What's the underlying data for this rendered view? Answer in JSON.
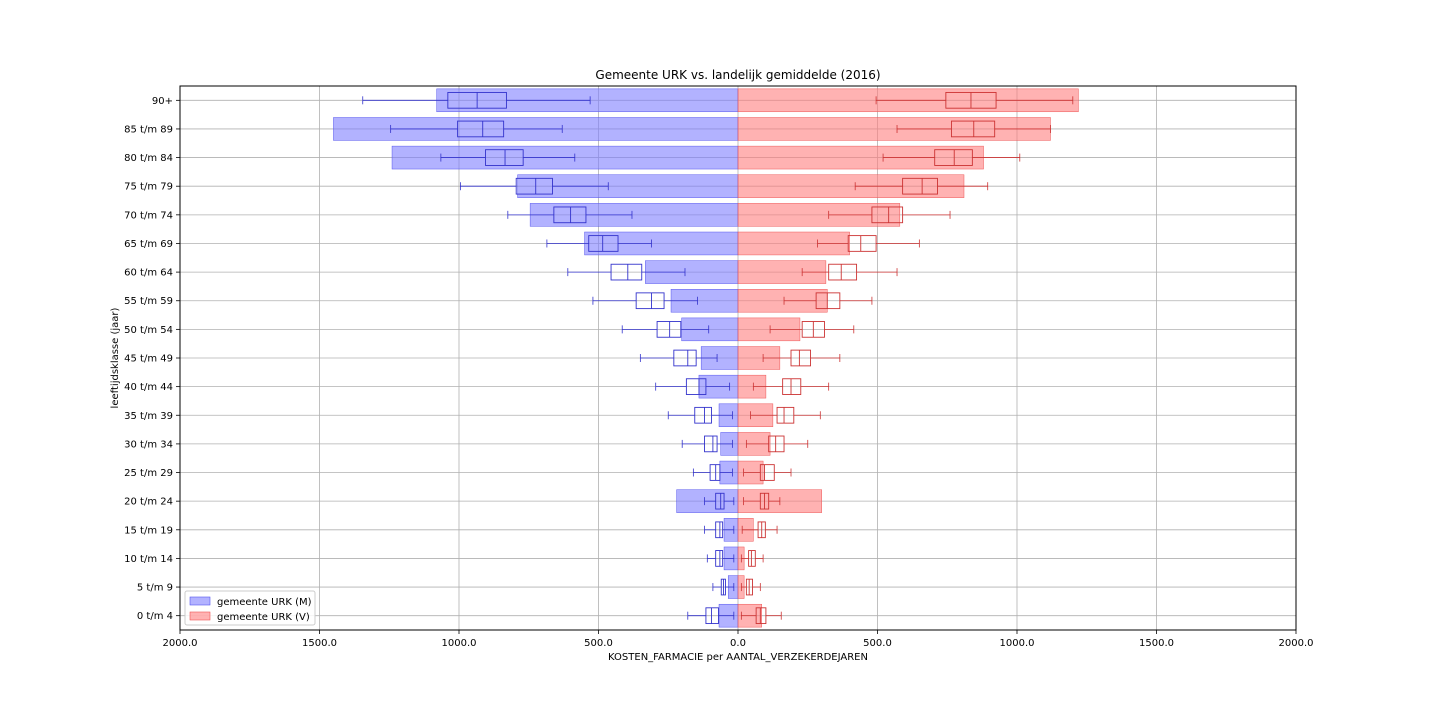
{
  "chart_data": {
    "type": "bar",
    "orientation": "horizontal-population-pyramid",
    "title": "Gemeente URK vs. landelijk gemiddelde (2016)",
    "xlabel": "KOSTEN_FARMACIE per AANTAL_VERZEKERDEJAREN",
    "ylabel": "leeftijdsklasse (jaar)",
    "xlim": [
      -2000,
      2000
    ],
    "xticks": [
      -2000,
      -1500,
      -1000,
      -500,
      0,
      500,
      1000,
      1500,
      2000
    ],
    "xtick_labels": [
      "2000.0",
      "1500.0",
      "1000.0",
      "500.0",
      "0.0",
      "500.0",
      "1000.0",
      "1500.0",
      "2000.0"
    ],
    "grid": true,
    "legend_placement": "lower-left",
    "categories": [
      "0 t/m  4",
      "5 t/m  9",
      "10 t/m 14",
      "15 t/m 19",
      "20 t/m 24",
      "25 t/m 29",
      "30 t/m 34",
      "35 t/m 39",
      "40 t/m 44",
      "45 t/m 49",
      "50 t/m 54",
      "55 t/m 59",
      "60 t/m 64",
      "65 t/m 69",
      "70 t/m 74",
      "75 t/m 79",
      "80 t/m 84",
      "85 t/m 89",
      "90+"
    ],
    "series": [
      {
        "name": "gemeente URK (M)",
        "side": "left",
        "color": "#7f7fff",
        "edge": "#5555ee",
        "box_color": "#3333cc",
        "values": [
          68,
          35,
          50,
          50,
          220,
          65,
          62,
          68,
          140,
          132,
          202,
          240,
          332,
          550,
          745,
          790,
          1240,
          1450,
          1080
        ],
        "boxes": [
          {
            "wlo": 15,
            "q1": 70,
            "med": 95,
            "q3": 115,
            "whi": 180
          },
          {
            "wlo": 15,
            "q1": 45,
            "med": 52,
            "q3": 60,
            "whi": 90
          },
          {
            "wlo": 15,
            "q1": 55,
            "med": 65,
            "q3": 80,
            "whi": 110
          },
          {
            "wlo": 15,
            "q1": 55,
            "med": 65,
            "q3": 80,
            "whi": 120
          },
          {
            "wlo": 15,
            "q1": 50,
            "med": 62,
            "q3": 80,
            "whi": 120
          },
          {
            "wlo": 20,
            "q1": 65,
            "med": 80,
            "q3": 100,
            "whi": 160
          },
          {
            "wlo": 20,
            "q1": 75,
            "med": 90,
            "q3": 120,
            "whi": 200
          },
          {
            "wlo": 20,
            "q1": 95,
            "med": 120,
            "q3": 155,
            "whi": 250
          },
          {
            "wlo": 30,
            "q1": 115,
            "med": 140,
            "q3": 185,
            "whi": 295
          },
          {
            "wlo": 75,
            "q1": 150,
            "med": 180,
            "q3": 230,
            "whi": 350
          },
          {
            "wlo": 105,
            "q1": 205,
            "med": 245,
            "q3": 290,
            "whi": 415
          },
          {
            "wlo": 145,
            "q1": 265,
            "med": 310,
            "q3": 365,
            "whi": 520
          },
          {
            "wlo": 190,
            "q1": 345,
            "med": 395,
            "q3": 455,
            "whi": 610
          },
          {
            "wlo": 310,
            "q1": 430,
            "med": 485,
            "q3": 535,
            "whi": 685
          },
          {
            "wlo": 380,
            "q1": 545,
            "med": 600,
            "q3": 660,
            "whi": 825
          },
          {
            "wlo": 465,
            "q1": 665,
            "med": 725,
            "q3": 795,
            "whi": 995
          },
          {
            "wlo": 585,
            "q1": 770,
            "med": 835,
            "q3": 905,
            "whi": 1065
          },
          {
            "wlo": 630,
            "q1": 840,
            "med": 915,
            "q3": 1005,
            "whi": 1245
          },
          {
            "wlo": 530,
            "q1": 830,
            "med": 935,
            "q3": 1040,
            "whi": 1345
          }
        ]
      },
      {
        "name": "gemeente URK (V)",
        "side": "right",
        "color": "#ff7f7f",
        "edge": "#ee5555",
        "box_color": "#cc3333",
        "values": [
          85,
          22,
          22,
          55,
          300,
          90,
          115,
          125,
          100,
          150,
          222,
          320,
          315,
          400,
          580,
          810,
          880,
          1120,
          1220
        ],
        "boxes": [
          {
            "wlo": 12,
            "q1": 65,
            "med": 80,
            "q3": 100,
            "whi": 155
          },
          {
            "wlo": 12,
            "q1": 30,
            "med": 40,
            "q3": 52,
            "whi": 80
          },
          {
            "wlo": 12,
            "q1": 38,
            "med": 48,
            "q3": 62,
            "whi": 90
          },
          {
            "wlo": 15,
            "q1": 72,
            "med": 85,
            "q3": 98,
            "whi": 140
          },
          {
            "wlo": 20,
            "q1": 80,
            "med": 95,
            "q3": 110,
            "whi": 150
          },
          {
            "wlo": 20,
            "q1": 80,
            "med": 95,
            "q3": 130,
            "whi": 190
          },
          {
            "wlo": 30,
            "q1": 110,
            "med": 135,
            "q3": 165,
            "whi": 250
          },
          {
            "wlo": 45,
            "q1": 140,
            "med": 165,
            "q3": 200,
            "whi": 295
          },
          {
            "wlo": 55,
            "q1": 160,
            "med": 190,
            "q3": 225,
            "whi": 325
          },
          {
            "wlo": 90,
            "q1": 190,
            "med": 220,
            "q3": 260,
            "whi": 365
          },
          {
            "wlo": 115,
            "q1": 230,
            "med": 270,
            "q3": 310,
            "whi": 415
          },
          {
            "wlo": 165,
            "q1": 280,
            "med": 320,
            "q3": 365,
            "whi": 480
          },
          {
            "wlo": 230,
            "q1": 325,
            "med": 370,
            "q3": 425,
            "whi": 570
          },
          {
            "wlo": 285,
            "q1": 395,
            "med": 440,
            "q3": 495,
            "whi": 650
          },
          {
            "wlo": 325,
            "q1": 480,
            "med": 540,
            "q3": 590,
            "whi": 760
          },
          {
            "wlo": 420,
            "q1": 590,
            "med": 660,
            "q3": 715,
            "whi": 895
          },
          {
            "wlo": 520,
            "q1": 705,
            "med": 775,
            "q3": 840,
            "whi": 1010
          },
          {
            "wlo": 570,
            "q1": 765,
            "med": 845,
            "q3": 920,
            "whi": 1120
          },
          {
            "wlo": 495,
            "q1": 745,
            "med": 835,
            "q3": 925,
            "whi": 1200
          }
        ]
      }
    ]
  }
}
